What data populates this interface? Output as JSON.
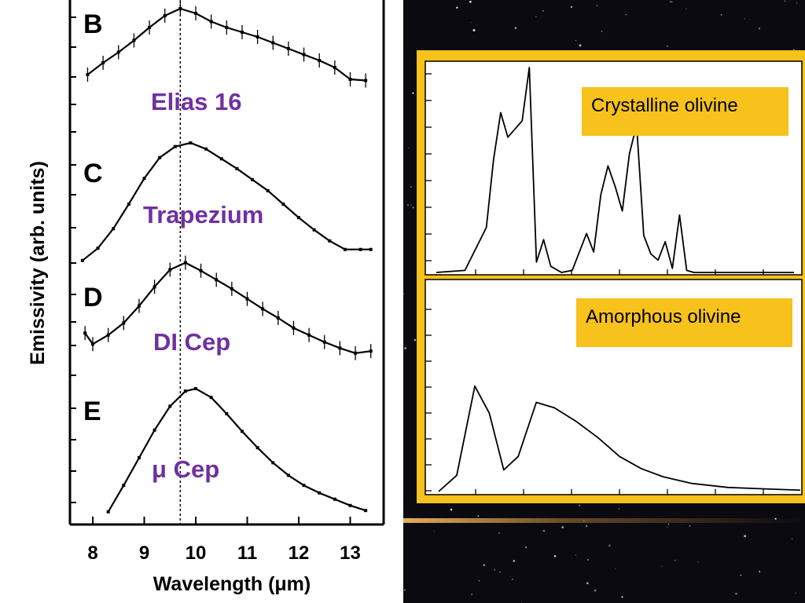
{
  "left_chart": {
    "ylabel": "Emissivity (arb. units)",
    "xlabel": "Wavelength (μm)",
    "x_ticks": [
      "8",
      "9",
      "10",
      "11",
      "12",
      "13"
    ],
    "panel_letters": [
      "B",
      "C",
      "D",
      "E"
    ],
    "source_labels": [
      "Elias 16",
      "Trapezium",
      "DI Cep",
      "μ Cep"
    ],
    "label_color": "#7030a0"
  },
  "right_chart": {
    "labels": [
      "Crystalline olivine",
      "Amorphous olivine"
    ],
    "frame_color": "#f6c21b"
  },
  "chart_data": [
    {
      "type": "line",
      "title": "",
      "xlabel": "Wavelength (μm)",
      "ylabel": "Emissivity (arb. units)",
      "xlim": [
        7.6,
        13.5
      ],
      "reference_line_x": 9.7,
      "series": [
        {
          "name": "Elias 16",
          "x": [
            7.9,
            8.2,
            8.5,
            8.8,
            9.1,
            9.4,
            9.7,
            10.0,
            10.3,
            10.6,
            10.9,
            11.2,
            11.5,
            11.8,
            12.1,
            12.4,
            12.7,
            13.0,
            13.3
          ],
          "y": [
            0.4,
            0.5,
            0.59,
            0.69,
            0.8,
            0.9,
            0.96,
            0.92,
            0.85,
            0.8,
            0.76,
            0.72,
            0.67,
            0.62,
            0.57,
            0.52,
            0.46,
            0.36,
            0.35
          ]
        },
        {
          "name": "Trapezium",
          "x": [
            7.8,
            8.1,
            8.4,
            8.7,
            9.0,
            9.3,
            9.6,
            9.9,
            10.2,
            10.5,
            10.8,
            11.1,
            11.4,
            11.7,
            12.0,
            12.3,
            12.6,
            12.9,
            13.2,
            13.4
          ],
          "y": [
            0.04,
            0.14,
            0.3,
            0.5,
            0.71,
            0.88,
            0.97,
            1.0,
            0.95,
            0.87,
            0.79,
            0.7,
            0.61,
            0.5,
            0.39,
            0.29,
            0.2,
            0.13,
            0.13,
            0.13
          ]
        },
        {
          "name": "DI Cep",
          "x": [
            7.85,
            8.0,
            8.3,
            8.6,
            8.9,
            9.2,
            9.5,
            9.8,
            10.1,
            10.4,
            10.7,
            11.0,
            11.3,
            11.6,
            11.9,
            12.2,
            12.5,
            12.8,
            13.1,
            13.4
          ],
          "y": [
            0.28,
            0.17,
            0.26,
            0.38,
            0.55,
            0.74,
            0.91,
            0.98,
            0.9,
            0.81,
            0.72,
            0.62,
            0.52,
            0.43,
            0.33,
            0.26,
            0.19,
            0.13,
            0.08,
            0.1
          ]
        },
        {
          "name": "μ Cep",
          "x": [
            8.3,
            8.6,
            8.9,
            9.2,
            9.5,
            9.8,
            10.0,
            10.3,
            10.6,
            10.9,
            11.2,
            11.5,
            11.8,
            12.1,
            12.4,
            12.7,
            13.0,
            13.3
          ],
          "y": [
            0.02,
            0.23,
            0.45,
            0.67,
            0.86,
            0.98,
            1.0,
            0.93,
            0.8,
            0.66,
            0.53,
            0.41,
            0.31,
            0.23,
            0.17,
            0.12,
            0.07,
            0.03
          ]
        }
      ]
    },
    {
      "type": "line",
      "title": "",
      "xlim": [
        0,
        1
      ],
      "series": [
        {
          "name": "Crystalline olivine",
          "x": [
            0.0,
            0.08,
            0.14,
            0.16,
            0.18,
            0.2,
            0.22,
            0.24,
            0.26,
            0.28,
            0.3,
            0.32,
            0.35,
            0.38,
            0.42,
            0.44,
            0.46,
            0.48,
            0.5,
            0.52,
            0.54,
            0.56,
            0.58,
            0.6,
            0.62,
            0.64,
            0.66,
            0.68,
            0.7,
            0.72,
            0.74,
            0.76,
            0.8,
            0.85,
            1.0
          ],
          "y": [
            0.0,
            0.01,
            0.22,
            0.55,
            0.78,
            0.66,
            0.7,
            0.74,
            1.0,
            0.05,
            0.16,
            0.03,
            0.0,
            0.01,
            0.19,
            0.1,
            0.38,
            0.52,
            0.42,
            0.3,
            0.58,
            0.72,
            0.18,
            0.09,
            0.06,
            0.15,
            0.02,
            0.28,
            0.01,
            0.0,
            0.0,
            0.0,
            0.0,
            0.0,
            0.0
          ]
        },
        {
          "name": "Amorphous olivine",
          "x": [
            0.0,
            0.05,
            0.1,
            0.14,
            0.18,
            0.22,
            0.27,
            0.32,
            0.38,
            0.44,
            0.5,
            0.56,
            0.62,
            0.7,
            0.8,
            0.9,
            1.0
          ],
          "y": [
            0.0,
            0.12,
            0.78,
            0.58,
            0.16,
            0.26,
            0.66,
            0.62,
            0.52,
            0.4,
            0.26,
            0.17,
            0.11,
            0.06,
            0.03,
            0.02,
            0.01
          ]
        }
      ]
    }
  ]
}
